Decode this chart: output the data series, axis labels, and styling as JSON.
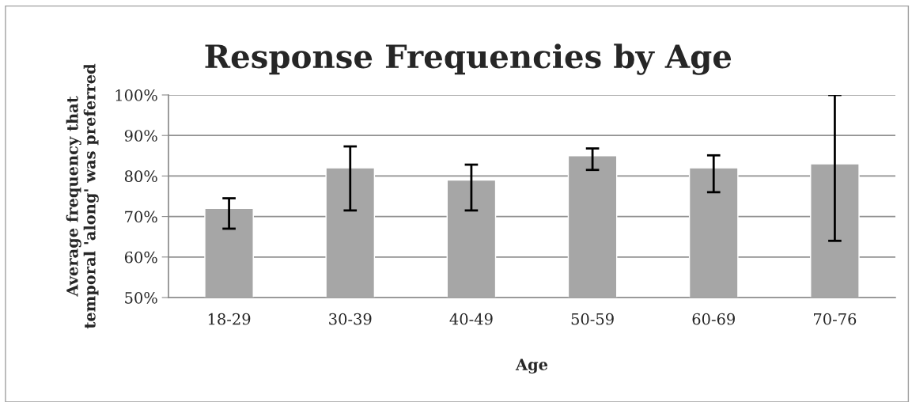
{
  "chart_data": {
    "type": "bar",
    "title": "Response Frequencies by Age",
    "xlabel": "Age",
    "ylabel": "Average frequency that\ntemporal 'along' was preferred",
    "categories": [
      "18-29",
      "30-39",
      "40-49",
      "50-59",
      "60-69",
      "70-76"
    ],
    "values": [
      72,
      82,
      79,
      85,
      82,
      83
    ],
    "errors": [
      [
        67,
        74.5
      ],
      [
        71.5,
        87.3
      ],
      [
        71.5,
        82.8
      ],
      [
        81.5,
        86.8
      ],
      [
        76,
        85.1
      ],
      [
        64,
        100
      ]
    ],
    "color": "#a6a6a6",
    "ylim": [
      50,
      100
    ],
    "yticks": [
      {
        "value": 50,
        "label": "50%"
      },
      {
        "value": 60,
        "label": "60%"
      },
      {
        "value": 70,
        "label": "70%"
      },
      {
        "value": 80,
        "label": "80%"
      },
      {
        "value": 90,
        "label": "90%"
      },
      {
        "value": 100,
        "label": "100%"
      }
    ],
    "grid": "y",
    "legend": false
  }
}
